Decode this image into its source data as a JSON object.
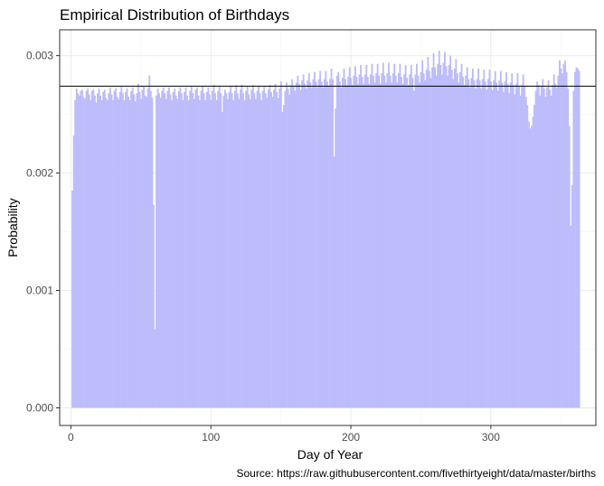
{
  "chart_data": {
    "type": "area",
    "title": "Empirical Distribution of Birthdays",
    "xlabel": "Day of Year",
    "ylabel": "Probability",
    "caption": "Source: https://raw.githubusercontent.com/fivethirtyeight/data/master/births",
    "xlim": [
      -8,
      375
    ],
    "ylim": [
      -0.00015,
      0.00322
    ],
    "x_ticks": [
      0,
      100,
      200,
      300
    ],
    "x_tick_labels": [
      "0",
      "100",
      "200",
      "300"
    ],
    "y_ticks": [
      0.0,
      0.001,
      0.002,
      0.003
    ],
    "y_tick_labels": [
      "0.000",
      "0.001",
      "0.002",
      "0.003"
    ],
    "grid": true,
    "reference_line": {
      "y": 0.00274
    },
    "fill_color": "#bdbdfb",
    "line_color": "#000000",
    "series": [
      {
        "x_start": 1,
        "x_end": 366,
        "values": [
          0.00185,
          0.00232,
          0.00262,
          0.00272,
          0.00268,
          0.00266,
          0.0027,
          0.00271,
          0.00265,
          0.00263,
          0.0027,
          0.00272,
          0.00267,
          0.00262,
          0.0027,
          0.00271,
          0.00266,
          0.0026,
          0.00268,
          0.00272,
          0.00266,
          0.00262,
          0.00269,
          0.00271,
          0.00264,
          0.00262,
          0.00268,
          0.00273,
          0.00267,
          0.00262,
          0.0027,
          0.00272,
          0.00265,
          0.00263,
          0.00269,
          0.00274,
          0.00268,
          0.00262,
          0.00269,
          0.00272,
          0.00265,
          0.00262,
          0.0027,
          0.00273,
          0.00267,
          0.00261,
          0.00268,
          0.00276,
          0.00269,
          0.00263,
          0.00271,
          0.00274,
          0.00266,
          0.00265,
          0.00272,
          0.00283,
          0.0027,
          0.00264,
          0.00173,
          0.00067,
          0.00266,
          0.00272,
          0.00268,
          0.00264,
          0.0027,
          0.00273,
          0.00268,
          0.00263,
          0.0027,
          0.00273,
          0.00267,
          0.00262,
          0.00269,
          0.00272,
          0.00266,
          0.00263,
          0.0027,
          0.00273,
          0.00268,
          0.00262,
          0.00269,
          0.00273,
          0.00266,
          0.00262,
          0.0027,
          0.00274,
          0.00268,
          0.00263,
          0.00271,
          0.00273,
          0.00266,
          0.00262,
          0.0027,
          0.00274,
          0.00268,
          0.00262,
          0.00269,
          0.00273,
          0.00267,
          0.00262,
          0.0027,
          0.00275,
          0.00268,
          0.00262,
          0.0027,
          0.00274,
          0.00268,
          0.00252,
          0.00266,
          0.00271,
          0.00268,
          0.00263,
          0.00269,
          0.00274,
          0.00268,
          0.00262,
          0.0027,
          0.00275,
          0.00268,
          0.00263,
          0.00271,
          0.00275,
          0.00268,
          0.00262,
          0.0027,
          0.00274,
          0.00267,
          0.00263,
          0.00271,
          0.00275,
          0.00268,
          0.00263,
          0.0027,
          0.00274,
          0.00268,
          0.00262,
          0.0027,
          0.00274,
          0.00268,
          0.00264,
          0.00271,
          0.00275,
          0.00269,
          0.00265,
          0.00271,
          0.00276,
          0.00269,
          0.00264,
          0.00272,
          0.00278,
          0.00252,
          0.00258,
          0.0027,
          0.00277,
          0.00272,
          0.00267,
          0.00275,
          0.0028,
          0.00274,
          0.0027,
          0.00277,
          0.00283,
          0.00276,
          0.00271,
          0.00279,
          0.00284,
          0.00276,
          0.00272,
          0.00279,
          0.00285,
          0.00277,
          0.00273,
          0.0028,
          0.00286,
          0.00278,
          0.00273,
          0.0028,
          0.00287,
          0.00278,
          0.00273,
          0.0028,
          0.00287,
          0.00278,
          0.00274,
          0.0028,
          0.00289,
          0.0028,
          0.00214,
          0.00255,
          0.00283,
          0.00286,
          0.00278,
          0.00273,
          0.00281,
          0.00289,
          0.0028,
          0.00275,
          0.00282,
          0.0029,
          0.00281,
          0.00275,
          0.00283,
          0.00291,
          0.00282,
          0.00276,
          0.00284,
          0.00292,
          0.00282,
          0.00276,
          0.00284,
          0.00292,
          0.00282,
          0.00276,
          0.00284,
          0.00293,
          0.00283,
          0.00277,
          0.00285,
          0.00293,
          0.00283,
          0.00276,
          0.00285,
          0.00294,
          0.00283,
          0.00277,
          0.00285,
          0.00294,
          0.00283,
          0.00277,
          0.00285,
          0.00293,
          0.00283,
          0.00277,
          0.00285,
          0.00293,
          0.00282,
          0.00276,
          0.00284,
          0.00292,
          0.00281,
          0.00275,
          0.00284,
          0.00292,
          0.00281,
          0.0027,
          0.00284,
          0.00293,
          0.00283,
          0.00277,
          0.00286,
          0.00296,
          0.00285,
          0.00279,
          0.00288,
          0.00299,
          0.00287,
          0.00281,
          0.0029,
          0.00302,
          0.0029,
          0.00283,
          0.00293,
          0.00304,
          0.00292,
          0.00284,
          0.00294,
          0.00303,
          0.00291,
          0.00283,
          0.00292,
          0.003,
          0.00288,
          0.0028,
          0.00289,
          0.00297,
          0.00285,
          0.00277,
          0.00286,
          0.00293,
          0.00282,
          0.00275,
          0.00283,
          0.0029,
          0.0028,
          0.00273,
          0.00281,
          0.00289,
          0.00279,
          0.00272,
          0.0028,
          0.00289,
          0.00279,
          0.00272,
          0.0028,
          0.00288,
          0.00278,
          0.00271,
          0.0028,
          0.00288,
          0.00278,
          0.00271,
          0.00279,
          0.00287,
          0.00277,
          0.0027,
          0.00279,
          0.00287,
          0.00277,
          0.00269,
          0.00278,
          0.00286,
          0.00276,
          0.00268,
          0.00277,
          0.00285,
          0.00275,
          0.00267,
          0.00276,
          0.00285,
          0.00274,
          0.00266,
          0.00275,
          0.00284,
          0.00274,
          0.00265,
          0.00258,
          0.00244,
          0.00238,
          0.0024,
          0.00248,
          0.00258,
          0.0027,
          0.00278,
          0.00275,
          0.00266,
          0.00274,
          0.0028,
          0.00272,
          0.00265,
          0.00273,
          0.00279,
          0.00271,
          0.00266,
          0.00275,
          0.00284,
          0.00276,
          0.00273,
          0.00283,
          0.00296,
          0.00289,
          0.00285,
          0.00293,
          0.00296,
          0.00286,
          0.00272,
          0.0024,
          0.00155,
          0.0019,
          0.0027,
          0.00286,
          0.0029,
          0.00289,
          0.00287
        ]
      }
    ]
  }
}
